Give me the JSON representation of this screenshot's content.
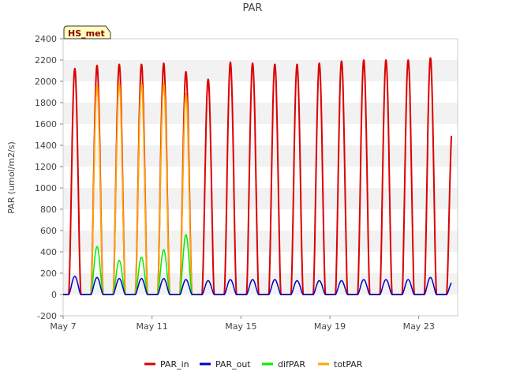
{
  "chart_data": {
    "type": "line",
    "title": "PAR",
    "ylabel": "PAR (umol/m2/s)",
    "xlabel": "",
    "ylim": [
      -200,
      2400
    ],
    "yticks": [
      -200,
      0,
      200,
      400,
      600,
      800,
      1000,
      1200,
      1400,
      1600,
      1800,
      2000,
      2200,
      2400
    ],
    "xlim": [
      "2024-05-07",
      "2024-05-24T18:00"
    ],
    "xticks": [
      {
        "date": "2024-05-07",
        "label": "May 7"
      },
      {
        "date": "2024-05-11",
        "label": "May 11"
      },
      {
        "date": "2024-05-15",
        "label": "May 15"
      },
      {
        "date": "2024-05-19",
        "label": "May 19"
      },
      {
        "date": "2024-05-23",
        "label": "May 23"
      }
    ],
    "grid": "horizontal bands",
    "legend_position": "bottom",
    "badge": "HS_met",
    "series": [
      {
        "name": "PAR_in",
        "color": "#dd0000",
        "days": [
          "2024-05-07",
          "2024-05-08",
          "2024-05-09",
          "2024-05-10",
          "2024-05-11",
          "2024-05-12",
          "2024-05-13",
          "2024-05-14",
          "2024-05-15",
          "2024-05-16",
          "2024-05-17",
          "2024-05-18",
          "2024-05-19",
          "2024-05-20",
          "2024-05-21",
          "2024-05-22",
          "2024-05-23",
          "2024-05-24"
        ],
        "daily_peak": [
          2120,
          2150,
          2160,
          2160,
          2170,
          2090,
          2020,
          2180,
          2170,
          2160,
          2160,
          2170,
          2190,
          2200,
          2200,
          2200,
          2220,
          1620
        ]
      },
      {
        "name": "PAR_out",
        "color": "#0000cc",
        "days": [
          "2024-05-07",
          "2024-05-08",
          "2024-05-09",
          "2024-05-10",
          "2024-05-11",
          "2024-05-12",
          "2024-05-13",
          "2024-05-14",
          "2024-05-15",
          "2024-05-16",
          "2024-05-17",
          "2024-05-18",
          "2024-05-19",
          "2024-05-20",
          "2024-05-21",
          "2024-05-22",
          "2024-05-23",
          "2024-05-24"
        ],
        "daily_peak": [
          170,
          160,
          150,
          150,
          150,
          140,
          130,
          140,
          140,
          140,
          130,
          130,
          130,
          140,
          140,
          140,
          160,
          120
        ]
      },
      {
        "name": "difPAR",
        "color": "#00ee00",
        "days": [
          "2024-05-08",
          "2024-05-09",
          "2024-05-10",
          "2024-05-11",
          "2024-05-12"
        ],
        "daily_peak": [
          450,
          320,
          350,
          420,
          560
        ]
      },
      {
        "name": "totPAR",
        "color": "#ffa500",
        "days": [
          "2024-05-08",
          "2024-05-09",
          "2024-05-10",
          "2024-05-11",
          "2024-05-12"
        ],
        "daily_peak": [
          1960,
          1980,
          1980,
          1980,
          1880
        ]
      }
    ]
  }
}
